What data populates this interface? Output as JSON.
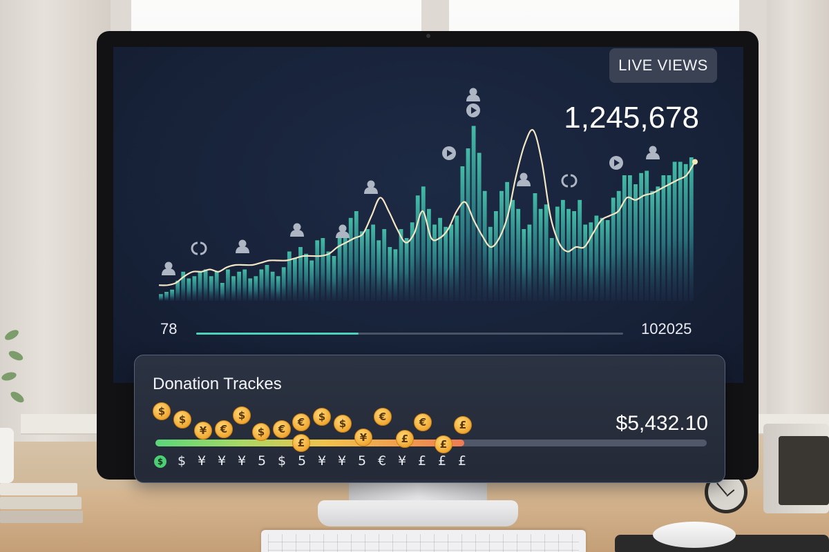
{
  "live_badge": "LIVE VIEWS",
  "view_count": "1,245,678",
  "scrubber": {
    "min_label": "78",
    "max_label": "102025",
    "progress": 0.38
  },
  "chart_data": {
    "type": "bar",
    "title": "",
    "xlabel": "",
    "ylabel": "",
    "bar_values": [
      3,
      4,
      5,
      9,
      13,
      10,
      11,
      13,
      14,
      11,
      13,
      8,
      14,
      11,
      13,
      14,
      10,
      11,
      14,
      16,
      13,
      11,
      15,
      22,
      19,
      24,
      21,
      18,
      27,
      28,
      22,
      20,
      28,
      30,
      37,
      40,
      31,
      32,
      34,
      27,
      32,
      24,
      23,
      32,
      28,
      35,
      47,
      51,
      41,
      34,
      37,
      33,
      34,
      38,
      60,
      68,
      78,
      66,
      49,
      33,
      40,
      49,
      53,
      45,
      41,
      32,
      34,
      48,
      41,
      43,
      28,
      42,
      45,
      41,
      40,
      45,
      34,
      35,
      38,
      37,
      36,
      46,
      49,
      56,
      56,
      52,
      57,
      58,
      49,
      51,
      56,
      56,
      62,
      62,
      61,
      64
    ],
    "trend_values": [
      7,
      7,
      8,
      11,
      13,
      13,
      14,
      13,
      15,
      16,
      16,
      16,
      17,
      18,
      18,
      18,
      19,
      20,
      20,
      20,
      21,
      24,
      26,
      28,
      30,
      38,
      46,
      40,
      32,
      26,
      30,
      40,
      28,
      28,
      32,
      40,
      44,
      36,
      29,
      24,
      28,
      38,
      56,
      70,
      76,
      62,
      38,
      26,
      22,
      24,
      24,
      30,
      36,
      38,
      40,
      46,
      45,
      47,
      48,
      50,
      52,
      54,
      56,
      62
    ],
    "ylim": [
      0,
      80
    ]
  },
  "markers": [
    {
      "icon": "person-icon",
      "pos": 0
    },
    {
      "icon": "refresh-icon",
      "pos": 1
    },
    {
      "icon": "person-icon",
      "pos": 2
    },
    {
      "icon": "person-icon",
      "pos": 3
    },
    {
      "icon": "person-icon",
      "pos": 4
    },
    {
      "icon": "person-icon",
      "pos": 5
    },
    {
      "icon": "play-icon",
      "pos": 6
    },
    {
      "icon": "person-icon",
      "pos": 7
    },
    {
      "icon": "play-icon",
      "pos": 8
    },
    {
      "icon": "person-icon",
      "pos": 9
    },
    {
      "icon": "refresh-icon",
      "pos": 10
    },
    {
      "icon": "play-icon",
      "pos": 11
    },
    {
      "icon": "person-icon",
      "pos": 12
    }
  ],
  "donations": {
    "title": "Donation Trackes",
    "total": "$5,432.10",
    "progress": 0.56,
    "coins": [
      "$",
      "$",
      "¥",
      "€",
      "$",
      "$",
      "€",
      "€",
      "£",
      "$",
      "$",
      "¥",
      "€",
      "£",
      "€",
      "£",
      "£"
    ],
    "symbols": [
      "$",
      "¥",
      "¥",
      "¥",
      "5",
      "$",
      "5",
      "¥",
      "¥",
      "5",
      "€",
      "¥",
      "£",
      "£",
      "£"
    ]
  },
  "colors": {
    "bar_top": "#3fb7a3",
    "bar_bottom": "#1e2a44",
    "trend_line": "#f3e6c4",
    "accent": "#4fd1b9"
  }
}
